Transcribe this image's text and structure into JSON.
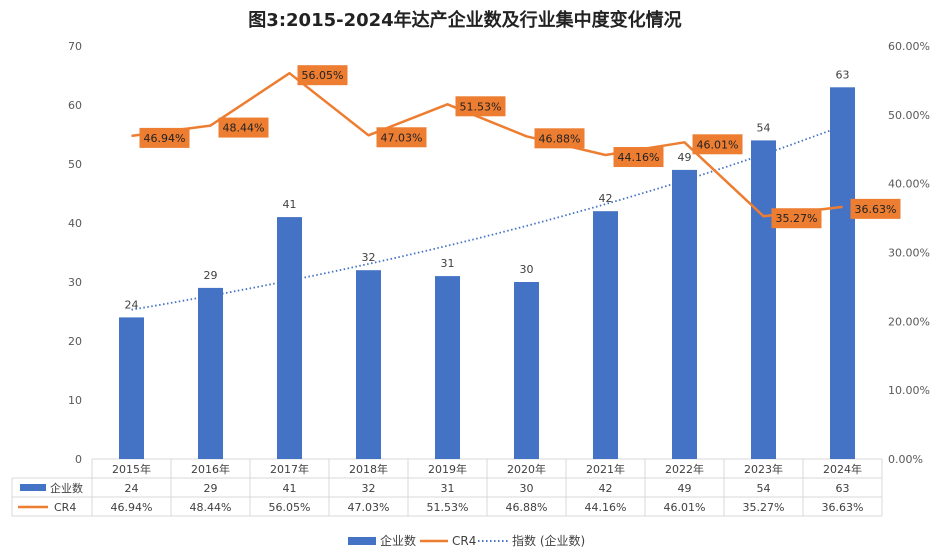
{
  "chart_data": {
    "type": "bar",
    "title": "图3:2015-2024年达产企业数及行业集中度变化情况",
    "categories": [
      "2015年",
      "2016年",
      "2017年",
      "2018年",
      "2019年",
      "2020年",
      "2021年",
      "2022年",
      "2023年",
      "2024年"
    ],
    "series": [
      {
        "name": "企业数",
        "type": "bar",
        "axis": "left",
        "values": [
          24,
          29,
          41,
          32,
          31,
          30,
          42,
          49,
          54,
          63
        ],
        "labels": [
          "24",
          "29",
          "41",
          "32",
          "31",
          "30",
          "42",
          "49",
          "54",
          "63"
        ],
        "color": "#4472C4"
      },
      {
        "name": "CR4",
        "type": "line",
        "axis": "right",
        "values": [
          46.94,
          48.44,
          56.05,
          47.03,
          51.53,
          46.88,
          44.16,
          46.01,
          35.27,
          36.63
        ],
        "labels": [
          "46.94%",
          "48.44%",
          "56.05%",
          "47.03%",
          "51.53%",
          "46.88%",
          "44.16%",
          "46.01%",
          "35.27%",
          "36.63%"
        ],
        "color": "#ED7D31"
      },
      {
        "name": "指数 (企业数)",
        "type": "trendline",
        "axis": "left",
        "color": "#4472C4"
      }
    ],
    "y_left": {
      "min": 0,
      "max": 70,
      "ticks": [
        "0",
        "10",
        "20",
        "30",
        "40",
        "50",
        "60",
        "70"
      ]
    },
    "y_right": {
      "min": 0,
      "max": 60,
      "ticks": [
        "0.00%",
        "10.00%",
        "20.00%",
        "30.00%",
        "40.00%",
        "50.00%",
        "60.00%"
      ]
    },
    "grid": false,
    "legend_position": "bottom",
    "data_table": true
  }
}
